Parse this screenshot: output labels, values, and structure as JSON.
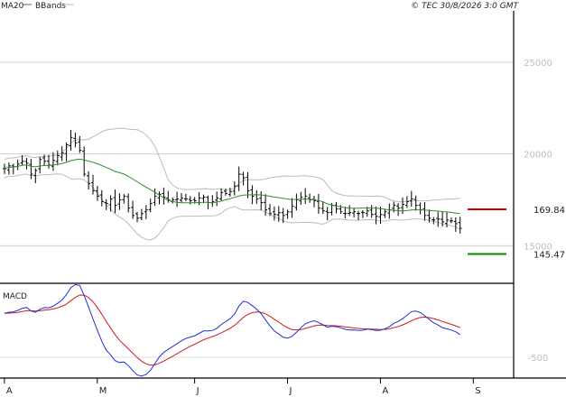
{
  "header": {
    "legend_items": [
      {
        "label": "MA20",
        "color": "#2a8f2a"
      },
      {
        "label": "BBands",
        "color": "#bbbbbb"
      }
    ],
    "copyright": "© TEC 30/8/2026 3:0 GMT"
  },
  "chart_data": [
    {
      "type": "line",
      "panel": "price",
      "title": "",
      "y_ticks": [
        15000,
        20000,
        25000
      ],
      "y_tick_labels": [
        "15000",
        "20000",
        "25000"
      ],
      "ylim": [
        13000,
        27800
      ],
      "x_month_labels": [
        "A",
        "M",
        "J",
        "J",
        "A",
        "S"
      ],
      "x_month_index": [
        1,
        22,
        44,
        65,
        86,
        107
      ],
      "n_sessions": 104,
      "grid": true,
      "series": [
        {
          "name": "MA20",
          "color": "#2a8f2a"
        },
        {
          "name": "BBands",
          "color": "#bbbbbb"
        }
      ],
      "levels": [
        {
          "label": "169.84",
          "value": 16984,
          "color": "#cc0000"
        },
        {
          "label": "145.47",
          "value": 14547,
          "color": "#008800"
        }
      ],
      "closes": [
        19200,
        19350,
        19300,
        19450,
        19600,
        19500,
        18900,
        19100,
        19700,
        19600,
        19400,
        19650,
        19900,
        20050,
        20500,
        20900,
        20600,
        20200,
        18900,
        18400,
        18000,
        17700,
        17400,
        17300,
        17550,
        17200,
        17500,
        17700,
        17050,
        16650,
        16500,
        16750,
        16950,
        17300,
        17700,
        17800,
        17650,
        17500,
        17500,
        17550,
        17600,
        17550,
        17450,
        17450,
        17600,
        17650,
        17350,
        17400,
        17600,
        17900,
        17850,
        17950,
        18250,
        18900,
        18700,
        18000,
        17700,
        17550,
        17350,
        16950,
        16750,
        16700,
        16800,
        16650,
        16850,
        17150,
        17500,
        17650,
        17700,
        17500,
        17450,
        17050,
        16900,
        16800,
        17200,
        17000,
        16850,
        16750,
        16800,
        16850,
        16750,
        16800,
        16900,
        16700,
        16600,
        16700,
        16850,
        16950,
        17200,
        17050,
        17250,
        17400,
        17550,
        17200,
        16950,
        16650,
        16500,
        16400,
        16450,
        16300,
        16400,
        16350,
        16200,
        15950
      ]
    },
    {
      "type": "line",
      "panel": "macd",
      "title": "MACD",
      "y_ticks": [
        -500
      ],
      "y_tick_labels": [
        "-500"
      ],
      "ylim": [
        -735,
        320
      ],
      "series": [
        {
          "name": "MACD",
          "color": "#1f2fd1"
        },
        {
          "name": "Signal",
          "color": "#d11a1a"
        }
      ]
    }
  ]
}
